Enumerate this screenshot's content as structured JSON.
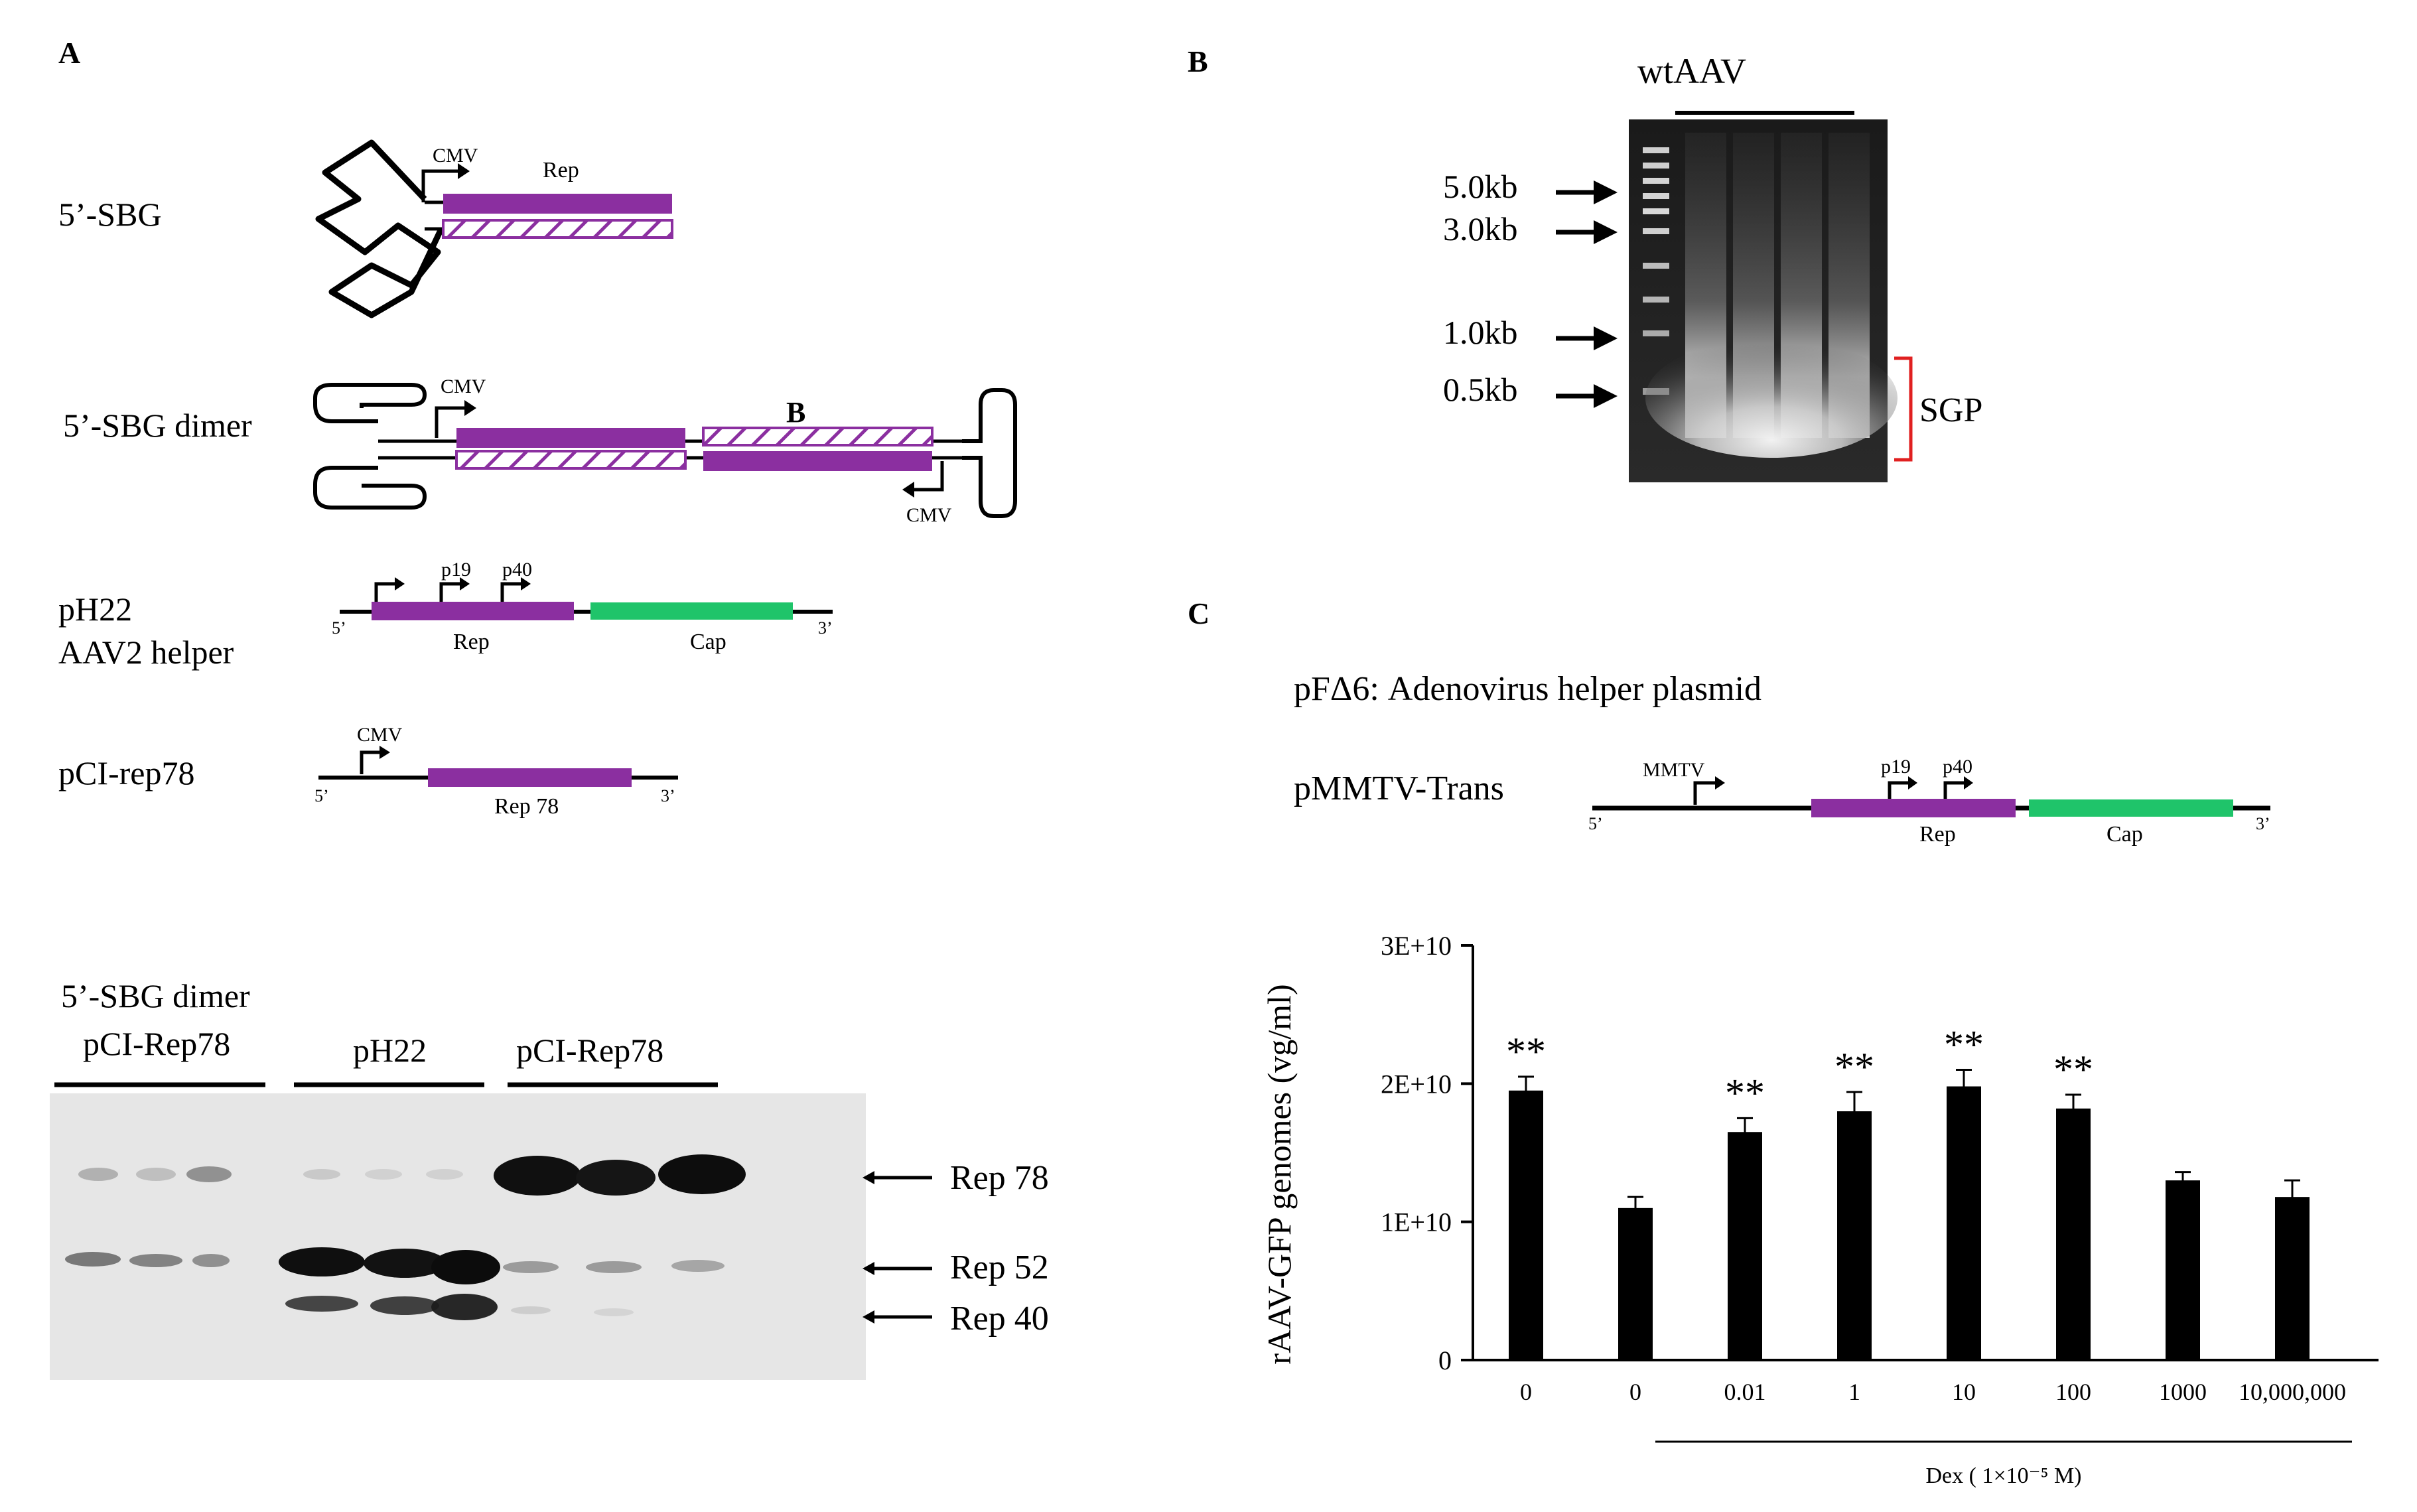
{
  "colors": {
    "rep": "#8b2fa0",
    "cap": "#1fc46a",
    "bracket": "#e02020",
    "bar": "#000000"
  },
  "panel_a": {
    "label": "A",
    "sbg": {
      "name": "5’-SBG",
      "promoter": "CMV",
      "gene": "Rep"
    },
    "dimer": {
      "name": "5’-SBG dimer",
      "promoter_left": "CMV",
      "promoter_right": "CMV",
      "mark": "B"
    },
    "ph22": {
      "name_line1": "pH22",
      "name_line2": "AAV2 helper",
      "p19": "p19",
      "p40": "p40",
      "rep": "Rep",
      "cap": "Cap",
      "end5": "5’",
      "end3": "3’"
    },
    "pci": {
      "name": "pCI-rep78",
      "promoter": "CMV",
      "gene": "Rep 78",
      "end5": "5’",
      "end3": "3’"
    },
    "blot": {
      "group1_line1": "5’-SBG dimer",
      "group1_line2": "pCI-Rep78",
      "group2": "pH22",
      "group3": "pCI-Rep78",
      "bands": [
        "Rep 78",
        "Rep 52",
        "Rep 40"
      ]
    }
  },
  "panel_b": {
    "label": "B",
    "lane_header": "wtAAV",
    "markers": [
      "5.0kb",
      "3.0kb",
      "1.0kb",
      "0.5kb"
    ],
    "bracket_label": "SGP"
  },
  "panel_c": {
    "label": "C",
    "helper_text": "pFΔ6: Adenovirus helper plasmid",
    "construct": {
      "name": "pMMTV-Trans",
      "mmtv": "MMTV",
      "p19": "p19",
      "p40": "p40",
      "rep": "Rep",
      "cap": "Cap",
      "end5": "5’",
      "end3": "3’"
    },
    "group_label": "Dex ( 1×10⁻⁵ M)"
  },
  "chart_data": {
    "type": "bar",
    "categories": [
      "0",
      "0",
      "0.01",
      "1",
      "10",
      "100",
      "1000",
      "10,000,000"
    ],
    "values": [
      19500000000.0,
      11000000000.0,
      16500000000.0,
      18000000000.0,
      19800000000.0,
      18200000000.0,
      13000000000.0,
      11800000000.0
    ],
    "errors": [
      1000000000.0,
      800000000.0,
      1000000000.0,
      1400000000.0,
      1200000000.0,
      1000000000.0,
      600000000.0,
      1200000000.0
    ],
    "significance": [
      "**",
      "",
      "**",
      "**",
      "**",
      "**",
      "",
      ""
    ],
    "ylabel": "rAAV-GFP genomes (vg/ml)",
    "yticks": [
      "0",
      "1E+10",
      "2E+10",
      "3E+10"
    ],
    "ylim": [
      0,
      30000000000.0
    ],
    "grid": false
  }
}
